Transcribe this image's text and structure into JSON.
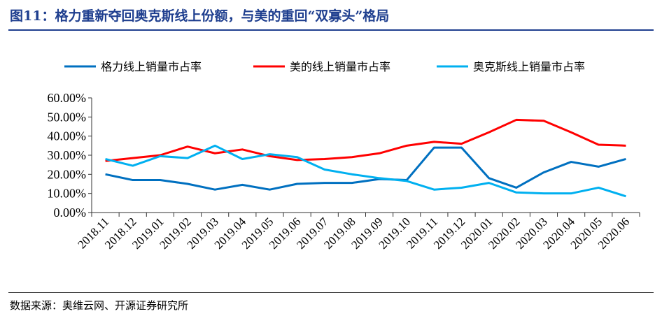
{
  "header": {
    "title": "图11：格力重新夺回奥克斯线上份额，与美的重回“双寡头”格局"
  },
  "footer": {
    "source": "数据来源：奥维云网、开源证券研究所"
  },
  "chart_data": {
    "type": "line",
    "title": "",
    "xlabel": "",
    "ylabel": "",
    "ylim": [
      0,
      60
    ],
    "yticks": [
      "0.00%",
      "10.00%",
      "20.00%",
      "30.00%",
      "40.00%",
      "50.00%",
      "60.00%"
    ],
    "legend_position": "top",
    "grid": false,
    "categories": [
      "2018.11",
      "2018.12",
      "2019.01",
      "2019.02",
      "2019.03",
      "2019.04",
      "2019.05",
      "2019.06",
      "2019.07",
      "2019.08",
      "2019.09",
      "2019.10",
      "2019.11",
      "2019.12",
      "2020.01",
      "2020.02",
      "2020.03",
      "2020.04",
      "2020.05",
      "2020.06"
    ],
    "series": [
      {
        "name": "格力线上销量市占率",
        "color": "#0070c0",
        "values": [
          20,
          17,
          17,
          15,
          12,
          14.5,
          12,
          15,
          15.5,
          15.5,
          17.5,
          17,
          34,
          34,
          18,
          13,
          21,
          26.5,
          24,
          28
        ]
      },
      {
        "name": "美的线上销量市占率",
        "color": "#ff0000",
        "values": [
          27,
          28.5,
          30,
          34.5,
          31,
          33,
          29.5,
          27.5,
          28,
          29,
          31,
          35,
          37,
          36,
          42,
          48.5,
          48,
          42,
          35.5,
          35
        ]
      },
      {
        "name": "奥克斯线上销量市占率",
        "color": "#00b0f0",
        "values": [
          28,
          24.5,
          29.5,
          28.5,
          35,
          28,
          30.5,
          29,
          22.5,
          20,
          18,
          16.5,
          12,
          13,
          15.5,
          10.5,
          10,
          10,
          13,
          8.5
        ]
      }
    ]
  }
}
